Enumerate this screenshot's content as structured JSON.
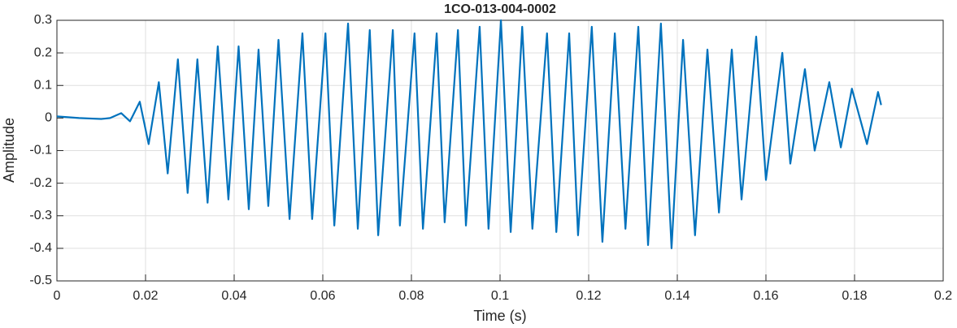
{
  "chart_data": {
    "type": "line",
    "title": "1CO-013-004-0002",
    "xlabel": "Time (s)",
    "ylabel": "Amplitude",
    "x": [
      0,
      0.005,
      0.01,
      0.012,
      0.0145,
      0.0165,
      0.0187,
      0.0207,
      0.023,
      0.025,
      0.0273,
      0.0295,
      0.0317,
      0.034,
      0.0363,
      0.0387,
      0.041,
      0.0433,
      0.0455,
      0.0477,
      0.05,
      0.0525,
      0.0554,
      0.0576,
      0.0606,
      0.0626,
      0.0657,
      0.0679,
      0.0706,
      0.0725,
      0.0758,
      0.0774,
      0.0807,
      0.0826,
      0.0857,
      0.0875,
      0.0905,
      0.0923,
      0.0954,
      0.0974,
      0.1002,
      0.1024,
      0.105,
      0.1073,
      0.1106,
      0.1127,
      0.1156,
      0.1176,
      0.1207,
      0.1231,
      0.1259,
      0.1283,
      0.1312,
      0.1334,
      0.1363,
      0.1387,
      0.1413,
      0.144,
      0.1468,
      0.1494,
      0.1523,
      0.1545,
      0.1578,
      0.16,
      0.1637,
      0.1655,
      0.1688,
      0.171,
      0.1743,
      0.1769,
      0.1794,
      0.1828,
      0.1853,
      0.186
    ],
    "series": [
      {
        "name": "Amplitude",
        "color": "#0072bd",
        "values": [
          0.005,
          0,
          -0.003,
          0,
          0.015,
          -0.01,
          0.05,
          -0.08,
          0.11,
          -0.17,
          0.18,
          -0.23,
          0.18,
          -0.26,
          0.22,
          -0.25,
          0.22,
          -0.28,
          0.21,
          -0.27,
          0.24,
          -0.31,
          0.26,
          -0.31,
          0.26,
          -0.33,
          0.29,
          -0.34,
          0.27,
          -0.36,
          0.27,
          -0.33,
          0.26,
          -0.34,
          0.26,
          -0.32,
          0.27,
          -0.33,
          0.28,
          -0.34,
          0.3,
          -0.35,
          0.28,
          -0.34,
          0.26,
          -0.35,
          0.26,
          -0.36,
          0.28,
          -0.38,
          0.26,
          -0.34,
          0.28,
          -0.39,
          0.29,
          -0.4,
          0.24,
          -0.36,
          0.21,
          -0.29,
          0.21,
          -0.25,
          0.25,
          -0.19,
          0.2,
          -0.14,
          0.15,
          -0.1,
          0.11,
          -0.09,
          0.09,
          -0.08,
          0.08,
          0.04
        ]
      }
    ],
    "xlim": [
      0,
      0.2
    ],
    "xticks": [
      0,
      0.02,
      0.04,
      0.06,
      0.08,
      0.1,
      0.12,
      0.14,
      0.16,
      0.18,
      0.2
    ],
    "ylim": [
      -0.5,
      0.3
    ],
    "yticks": [
      -0.5,
      -0.4,
      -0.3,
      -0.2,
      -0.1,
      0,
      0.1,
      0.2,
      0.3
    ],
    "grid": true
  }
}
